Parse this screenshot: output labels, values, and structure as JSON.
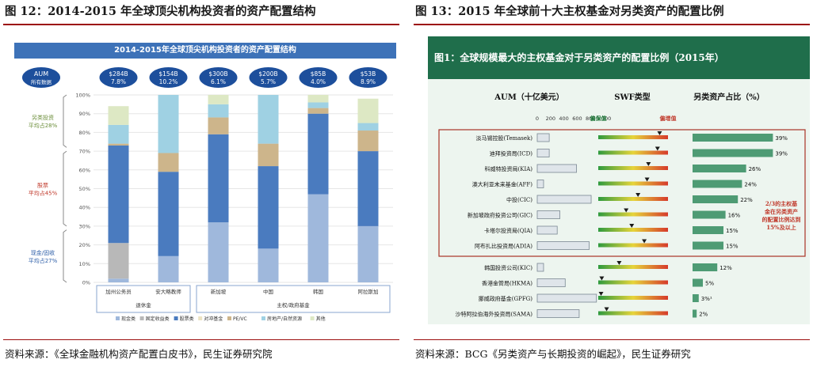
{
  "left": {
    "figure_title": "图 12：2014-2015 年全球顶尖机构投资者的资产配置结构",
    "source": "资料来源：《全球金融机构资产配置白皮书》，民生证券研究院"
  },
  "right": {
    "figure_title": "图 13：2015 年全球前十大主权基金对另类资产的配置比例",
    "source": "资料来源：BCG《另类资产与长期投资的崛起》，民生证券研究"
  },
  "chart_data": [
    {
      "type": "bar",
      "stacked": true,
      "title": "2014-2015年全球顶尖机构投资者的资产配置结构",
      "aum_header": "AUM",
      "aum_subheader": "所有数据",
      "categories": [
        "加州公务员",
        "安大略教师",
        "新加坡",
        "中国",
        "韩国",
        "阿拉斯加"
      ],
      "group_labels": [
        {
          "label": "退休金",
          "from": 0,
          "to": 1
        },
        {
          "label": "主权/政府基金",
          "from": 2,
          "to": 5
        }
      ],
      "aum": [
        "$284B",
        "$154B",
        "$300B",
        "$200B",
        "$85B",
        "$53B"
      ],
      "aum_pct": [
        "7.8%",
        "10.2%",
        "6.1%",
        "5.7%",
        "4.0%",
        "8.9%"
      ],
      "yticks": [
        "0%",
        "10%",
        "20%",
        "30%",
        "40%",
        "50%",
        "60%",
        "70%",
        "80%",
        "90%",
        "100%"
      ],
      "ylim": [
        0,
        100
      ],
      "side_labels": [
        {
          "name": "另类投资",
          "note": "平均占28%"
        },
        {
          "name": "股票",
          "note": "平均占45%"
        },
        {
          "name": "现金/固收",
          "note": "平均占27%"
        }
      ],
      "series": [
        {
          "name": "现金类",
          "color": "#9fb8dc",
          "values": [
            2,
            14,
            32,
            18,
            47,
            30
          ]
        },
        {
          "name": "固定收益类",
          "color": "#b8b8b8",
          "values": [
            19,
            0,
            0,
            0,
            0,
            0
          ]
        },
        {
          "name": "股票类",
          "color": "#4a7bbf",
          "values": [
            52,
            45,
            47,
            44,
            43,
            40
          ]
        },
        {
          "name": "对冲基金",
          "color": "#ece3c3",
          "values": [
            0,
            0,
            0,
            0,
            0,
            0
          ]
        },
        {
          "name": "PE/VC",
          "color": "#cdb58b",
          "values": [
            1,
            10,
            9,
            12,
            3,
            11
          ]
        },
        {
          "name": "房地产/自然资源",
          "color": "#9fd1e3",
          "values": [
            10,
            31,
            7,
            26,
            3,
            4
          ]
        },
        {
          "name": "其他",
          "color": "#dde8c4",
          "values": [
            10,
            0,
            5,
            0,
            4,
            13
          ]
        }
      ],
      "legend_position": "bottom"
    },
    {
      "type": "bar",
      "orientation": "horizontal",
      "title": "图1：全球规模最大的主权基金对于另类资产的配置比例（2015年）",
      "columns": [
        "AUM（十亿美元）",
        "SWF类型",
        "另类资产占比（%）"
      ],
      "aum_axis_ticks": [
        "0",
        "200",
        "400",
        "600",
        "800",
        "1,000"
      ],
      "swf_scale_labels": {
        "left": "偏保值",
        "right": "偏增值"
      },
      "annotation": "2/3的主权基金在另类资产的配置比例达到15%及以上",
      "categories": [
        "淡马锡控股(Temasek)",
        "迪拜投资局(ICD)",
        "科威特投资局(KIA)",
        "澳大利亚未来基金(AFF)",
        "中投(CIC)",
        "新加坡政府投资公司(GIC)",
        "卡塔尔投资局(QIA)",
        "阿布扎比投资局(ADIA)",
        "韩国投资公司(KIC)",
        "香港金管局(HKMA)",
        "挪威政府基金(GPFG)",
        "沙特阿拉伯海外投资局(SAMA)"
      ],
      "aum_values": [
        180,
        180,
        590,
        95,
        810,
        340,
        300,
        780,
        95,
        420,
        890,
        630
      ],
      "swf_position": [
        0.88,
        0.85,
        0.72,
        0.7,
        0.57,
        0.4,
        0.48,
        0.66,
        0.3,
        0.05,
        0.04,
        0.12
      ],
      "alt_values": [
        39,
        39,
        26,
        24,
        22,
        16,
        15,
        15,
        12,
        5,
        3,
        2
      ],
      "alt_value_labels": [
        "39%",
        "39%",
        "26%",
        "24%",
        "22%",
        "16%",
        "15%",
        "15%",
        "12%",
        "5%",
        "3%¹",
        "2%"
      ]
    }
  ]
}
